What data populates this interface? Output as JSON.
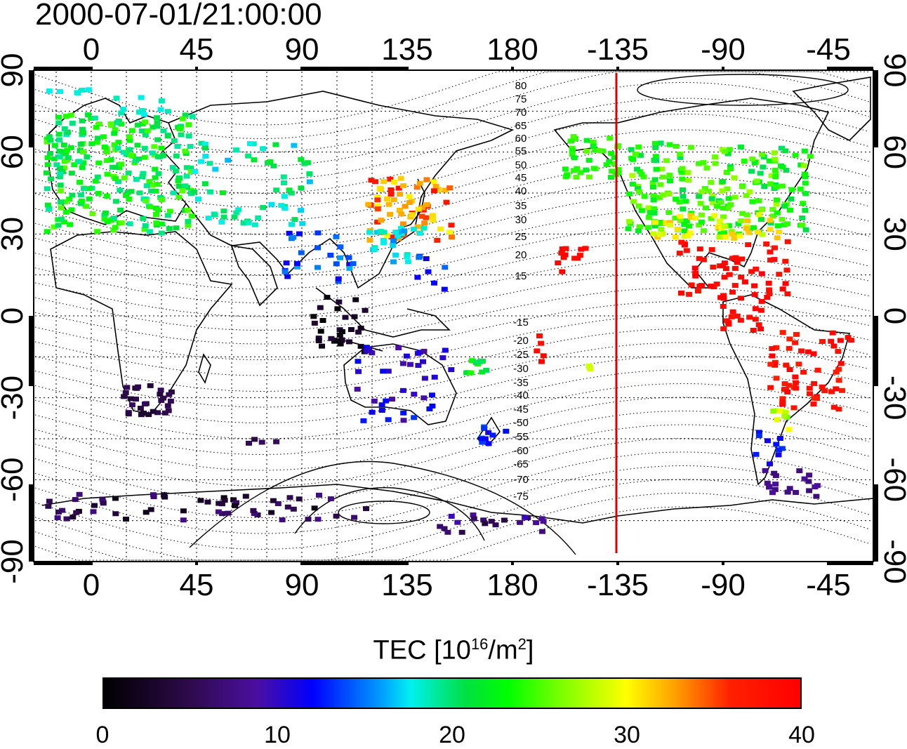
{
  "timestamp": "2000-07-01/21:00:00",
  "map": {
    "top_lon_ticks": [
      "0",
      "45",
      "90",
      "135",
      "180",
      "-135",
      "-90",
      "-45"
    ],
    "bottom_lon_ticks": [
      "0",
      "45",
      "90",
      "135",
      "180",
      "-135",
      "-90",
      "-45"
    ],
    "lat_ticks": [
      "90",
      "60",
      "30",
      "0",
      "-30",
      "-60",
      "-90"
    ],
    "contour_labels": [
      "80",
      "75",
      "70",
      "65",
      "60",
      "55",
      "50",
      "45",
      "40",
      "35",
      "30",
      "25",
      "20",
      "15",
      "-15",
      "-20",
      "-25",
      "-30",
      "-35",
      "-40",
      "-45",
      "-50",
      "-55",
      "-60",
      "-65",
      "-70",
      "-75"
    ],
    "terminator_color": "#dd0000"
  },
  "colorbar": {
    "title_prefix": "TEC  [10",
    "title_exp": "16",
    "title_mid": "/m",
    "title_exp2": "2",
    "title_suffix": "]",
    "ticks": [
      "0",
      "10",
      "20",
      "30",
      "40"
    ],
    "range": [
      0,
      40
    ]
  }
}
